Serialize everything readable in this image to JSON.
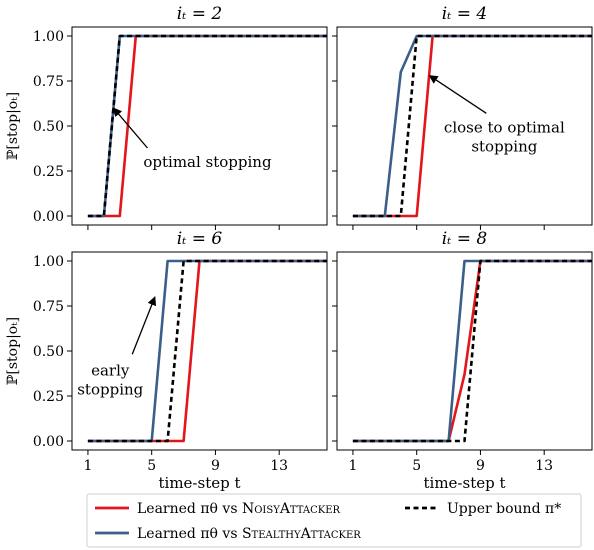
{
  "figure": {
    "ylabel": "ℙ[stop|oₜ]",
    "xlabel": "time-step t",
    "legend": {
      "items": [
        {
          "key": "noisy",
          "prefix": "Learned πθ vs ",
          "name": "NoisyAttacker",
          "color": "#e3161b",
          "dash": false
        },
        {
          "key": "stealthy",
          "prefix": "Learned πθ vs ",
          "name": "StealthyAttacker",
          "color": "#3a5f8a",
          "dash": false
        },
        {
          "key": "upper",
          "prefix": "",
          "name": "Upper bound π*",
          "color": "#000000",
          "dash": true
        }
      ]
    }
  },
  "chart_data": [
    {
      "type": "line",
      "title": "iₜ = 2",
      "xlim": [
        0,
        16
      ],
      "ylim": [
        -0.05,
        1.05
      ],
      "xticks": [
        1,
        5,
        9,
        13
      ],
      "yticks": [
        0.0,
        0.25,
        0.5,
        0.75,
        1.0
      ],
      "ytick_labels": [
        "0.00",
        "0.25",
        "0.50",
        "0.75",
        "1.00"
      ],
      "show_xticklabels": false,
      "show_yticklabels": true,
      "series": [
        {
          "name": "Learned πθ vs NoisyAttacker",
          "x": [
            1,
            2,
            3,
            4,
            16
          ],
          "y": [
            0,
            0,
            0,
            1,
            1
          ]
        },
        {
          "name": "Learned πθ vs StealthyAttacker",
          "x": [
            1,
            2,
            3,
            16
          ],
          "y": [
            0,
            0,
            1,
            1
          ]
        },
        {
          "name": "Upper bound π*",
          "x": [
            1,
            2,
            3,
            16
          ],
          "y": [
            0,
            0,
            1,
            1
          ]
        }
      ],
      "annotation": {
        "text": [
          "optimal stopping"
        ],
        "text_at": [
          8.5,
          0.3
        ],
        "arrow_to": [
          2.6,
          0.6
        ]
      }
    },
    {
      "type": "line",
      "title": "iₜ = 4",
      "xlim": [
        0,
        16
      ],
      "ylim": [
        -0.05,
        1.05
      ],
      "xticks": [
        1,
        5,
        9,
        13
      ],
      "yticks": [
        0.0,
        0.25,
        0.5,
        0.75,
        1.0
      ],
      "ytick_labels": [
        "0.00",
        "0.25",
        "0.50",
        "0.75",
        "1.00"
      ],
      "show_xticklabels": false,
      "show_yticklabels": false,
      "series": [
        {
          "name": "Learned πθ vs NoisyAttacker",
          "x": [
            1,
            4,
            5,
            6,
            16
          ],
          "y": [
            0,
            0,
            0,
            1,
            1
          ]
        },
        {
          "name": "Learned πθ vs StealthyAttacker",
          "x": [
            1,
            3,
            4,
            5,
            16
          ],
          "y": [
            0,
            0,
            0.8,
            1,
            1
          ]
        },
        {
          "name": "Upper bound π*",
          "x": [
            1,
            4,
            5,
            16
          ],
          "y": [
            0,
            0,
            1,
            1
          ]
        }
      ],
      "annotation": {
        "text": [
          "close to optimal",
          "stopping"
        ],
        "text_at": [
          10.5,
          0.44
        ],
        "arrow_to": [
          5.8,
          0.78
        ]
      }
    },
    {
      "type": "line",
      "title": "iₜ = 6",
      "xlim": [
        0,
        16
      ],
      "ylim": [
        -0.05,
        1.05
      ],
      "xticks": [
        1,
        5,
        9,
        13
      ],
      "yticks": [
        0.0,
        0.25,
        0.5,
        0.75,
        1.0
      ],
      "ytick_labels": [
        "0.00",
        "0.25",
        "0.50",
        "0.75",
        "1.00"
      ],
      "xtick_labels": [
        "1",
        "5",
        "9",
        "13"
      ],
      "show_xticklabels": true,
      "show_yticklabels": true,
      "series": [
        {
          "name": "Learned πθ vs NoisyAttacker",
          "x": [
            1,
            6,
            7,
            8,
            16
          ],
          "y": [
            0,
            0,
            0,
            1,
            1
          ]
        },
        {
          "name": "Learned πθ vs StealthyAttacker",
          "x": [
            1,
            5,
            6,
            16
          ],
          "y": [
            0,
            0,
            1,
            1
          ]
        },
        {
          "name": "Upper bound π*",
          "x": [
            1,
            6,
            7,
            16
          ],
          "y": [
            0,
            0,
            1,
            1
          ]
        }
      ],
      "annotation": {
        "text": [
          "early",
          "stopping"
        ],
        "text_at": [
          2.4,
          0.34
        ],
        "arrow_to": [
          5.2,
          0.8
        ]
      }
    },
    {
      "type": "line",
      "title": "iₜ = 8",
      "xlim": [
        0,
        16
      ],
      "ylim": [
        -0.05,
        1.05
      ],
      "xticks": [
        1,
        5,
        9,
        13
      ],
      "yticks": [
        0.0,
        0.25,
        0.5,
        0.75,
        1.0
      ],
      "ytick_labels": [
        "0.00",
        "0.25",
        "0.50",
        "0.75",
        "1.00"
      ],
      "xtick_labels": [
        "1",
        "5",
        "9",
        "13"
      ],
      "show_xticklabels": true,
      "show_yticklabels": false,
      "series": [
        {
          "name": "Learned πθ vs NoisyAttacker",
          "x": [
            1,
            7,
            8,
            9,
            16
          ],
          "y": [
            0,
            0,
            0.37,
            1,
            1
          ]
        },
        {
          "name": "Learned πθ vs StealthyAttacker",
          "x": [
            1,
            7,
            8,
            16
          ],
          "y": [
            0,
            0,
            1,
            1
          ]
        },
        {
          "name": "Upper bound π*",
          "x": [
            1,
            8,
            9,
            16
          ],
          "y": [
            0,
            0,
            1,
            1
          ]
        }
      ],
      "annotation": null
    }
  ]
}
